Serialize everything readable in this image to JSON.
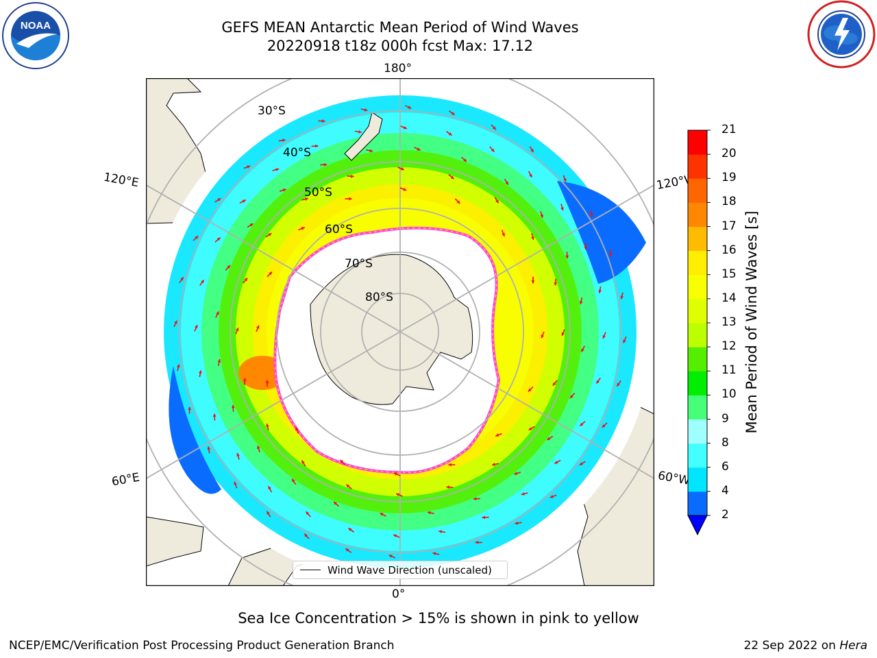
{
  "header": {
    "title_line1": "GEFS MEAN Antarctic Mean Period of Wind Waves",
    "title_line2": "20220918 t18z 000h fcst   Max: 17.12"
  },
  "logos": {
    "left": "NOAA",
    "right": "National Weather Service"
  },
  "map": {
    "projection": "south-polar-stereographic",
    "longitude_labels": [
      "180°",
      "120°E",
      "120°W",
      "60°E",
      "60°W",
      "0°"
    ],
    "latitude_labels": [
      "30°S",
      "40°S",
      "50°S",
      "60°S",
      "70°S",
      "80°S"
    ],
    "legend": "Wind Wave Direction (unscaled)",
    "colors": {
      "land": "#efebdc",
      "ocean_nodata": "#ffffff",
      "arrow": "#ee1111",
      "ice_edge": "#ff44dd",
      "grid": "#b0b0b0"
    }
  },
  "colorbar": {
    "label": "Mean Period of Wind Waves [s]",
    "ticks": [
      "2",
      "4",
      "6",
      "8",
      "9",
      "10",
      "11",
      "12",
      "13",
      "14",
      "15",
      "16",
      "17",
      "18",
      "19",
      "20",
      "21"
    ],
    "bands": [
      {
        "from": 2,
        "to": 4,
        "color": "#0a6cff"
      },
      {
        "from": 4,
        "to": 6,
        "color": "#00e6ff"
      },
      {
        "from": 6,
        "to": 8,
        "color": "#44ffff"
      },
      {
        "from": 8,
        "to": 9,
        "color": "#a0ffff"
      },
      {
        "from": 9,
        "to": 10,
        "color": "#44ff77"
      },
      {
        "from": 10,
        "to": 11,
        "color": "#00ee00"
      },
      {
        "from": 11,
        "to": 12,
        "color": "#55ee00"
      },
      {
        "from": 12,
        "to": 13,
        "color": "#bbff00"
      },
      {
        "from": 13,
        "to": 14,
        "color": "#dfff00"
      },
      {
        "from": 14,
        "to": 15,
        "color": "#f7ff00"
      },
      {
        "from": 15,
        "to": 16,
        "color": "#ffee00"
      },
      {
        "from": 16,
        "to": 17,
        "color": "#ffbb00"
      },
      {
        "from": 17,
        "to": 18,
        "color": "#ff8800"
      },
      {
        "from": 18,
        "to": 19,
        "color": "#ff6600"
      },
      {
        "from": 19,
        "to": 20,
        "color": "#ff3300"
      },
      {
        "from": 20,
        "to": 21,
        "color": "#ff0000"
      }
    ],
    "extend_below_color": "#0000ff"
  },
  "footer": {
    "note": "Sea Ice Concentration > 15% is shown in pink to yellow",
    "left": "NCEP/EMC/Verification Post Processing Product Generation Branch",
    "right_date": "22 Sep 2022 on ",
    "right_host": "Hera"
  }
}
